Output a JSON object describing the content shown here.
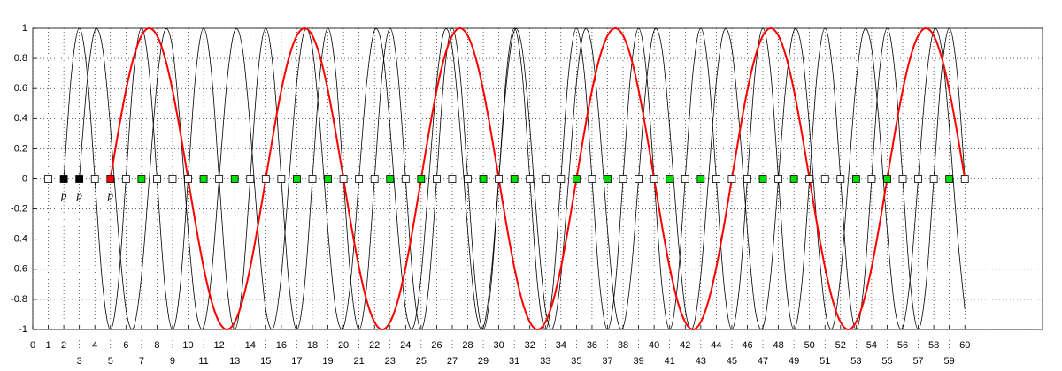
{
  "chart_data": {
    "type": "line",
    "xlim": [
      0,
      65
    ],
    "ylim": [
      -1,
      1
    ],
    "xticks": [
      0,
      1,
      2,
      3,
      4,
      5,
      6,
      7,
      8,
      9,
      10,
      11,
      12,
      13,
      14,
      15,
      16,
      17,
      18,
      19,
      20,
      21,
      22,
      23,
      24,
      25,
      26,
      27,
      28,
      29,
      30,
      31,
      32,
      33,
      34,
      35,
      36,
      37,
      38,
      39,
      40,
      41,
      42,
      43,
      44,
      45,
      46,
      47,
      48,
      49,
      50,
      51,
      52,
      53,
      54,
      55,
      56,
      57,
      58,
      59,
      60
    ],
    "yticks": [
      -1,
      -0.8,
      -0.6,
      -0.4,
      -0.2,
      0,
      0.2,
      0.4,
      0.6,
      0.8,
      1
    ],
    "grid": true,
    "x": [
      0,
      0.5,
      1,
      1.5,
      2,
      2.5,
      3,
      3.5,
      4,
      4.5,
      5,
      5.5,
      6,
      6.5,
      7,
      7.5,
      8,
      8.5,
      9,
      9.5,
      10,
      10.5,
      11,
      11.5,
      12,
      12.5,
      13,
      13.5,
      14,
      14.5,
      15,
      15.5,
      16,
      16.5,
      17,
      17.5,
      18,
      18.5,
      19,
      19.5,
      20,
      20.5,
      21,
      21.5,
      22,
      22.5,
      23,
      23.5,
      24,
      24.5,
      25,
      25.5,
      26,
      26.5,
      27,
      27.5,
      28,
      28.5,
      29,
      29.5,
      30,
      30.5,
      31,
      31.5,
      32,
      32.5,
      33,
      33.5,
      34,
      34.5,
      35,
      35.5,
      36,
      36.5,
      37,
      37.5,
      38,
      38.5,
      39,
      39.5,
      40,
      40.5,
      41,
      41.5,
      42,
      42.5,
      43,
      43.5,
      44,
      44.5,
      45,
      45.5,
      46,
      46.5,
      47,
      47.5,
      48,
      48.5,
      49,
      49.5,
      50,
      50.5,
      51,
      51.5,
      52,
      52.5,
      53,
      53.5,
      54,
      54.5,
      55,
      55.5,
      56,
      56.5,
      57,
      57.5,
      58,
      58.5,
      59,
      59.5,
      60
    ],
    "series": [
      {
        "color": "#000000",
        "values": [
          null,
          null,
          null,
          null,
          0,
          0.707,
          1,
          0.707,
          0,
          -0.707,
          -1,
          -0.707,
          0,
          0.707,
          1,
          0.707,
          0,
          -0.707,
          -1,
          -0.707,
          0,
          0.707,
          1,
          0.707,
          0,
          -0.707,
          -1,
          -0.707,
          0,
          0.707,
          1,
          0.707,
          0,
          -0.707,
          -1,
          -0.707,
          0,
          0.707,
          1,
          0.707,
          0,
          -0.707,
          -1,
          -0.707,
          0,
          0.707,
          1,
          0.707,
          0,
          -0.707,
          -1,
          -0.707,
          0,
          0.707,
          1,
          0.707,
          0,
          -0.707,
          -1,
          -0.707,
          0,
          0.707,
          1,
          0.707,
          0,
          -0.707,
          -1,
          -0.707,
          0,
          0.707,
          1,
          0.707,
          0,
          -0.707,
          -1,
          -0.707,
          0,
          0.707,
          1,
          0.707,
          0,
          -0.707,
          -1,
          -0.707,
          0,
          0.707,
          1,
          0.707,
          0,
          -0.707,
          -1,
          -0.707,
          0,
          0.707,
          1,
          0.707,
          0,
          -0.707,
          -1,
          -0.707,
          0,
          0.707,
          1,
          0.707,
          0,
          -0.707,
          -1,
          -0.707,
          0,
          0.707,
          1,
          0.707,
          0,
          -0.707,
          -1,
          -0.707,
          0,
          0.707,
          1,
          0.707,
          0
        ]
      },
      {
        "color": "#000000",
        "values": [
          null,
          null,
          null,
          null,
          null,
          null,
          0,
          0.643,
          0.985,
          0.866,
          0.342,
          -0.342,
          -0.866,
          -0.985,
          -0.643,
          0,
          0.643,
          0.985,
          0.866,
          0.342,
          -0.342,
          -0.866,
          -0.985,
          -0.643,
          0,
          0.643,
          0.985,
          0.866,
          0.342,
          -0.342,
          -0.866,
          -0.985,
          -0.643,
          0,
          0.643,
          0.985,
          0.866,
          0.342,
          -0.342,
          -0.866,
          -0.985,
          -0.643,
          0,
          0.643,
          0.985,
          0.866,
          0.342,
          -0.342,
          -0.866,
          -0.985,
          -0.643,
          0,
          0.643,
          0.985,
          0.866,
          0.342,
          -0.342,
          -0.866,
          -0.985,
          -0.643,
          0,
          0.643,
          0.985,
          0.866,
          0.342,
          -0.342,
          -0.866,
          -0.985,
          -0.643,
          0,
          0.643,
          0.985,
          0.866,
          0.342,
          -0.342,
          -0.866,
          -0.985,
          -0.643,
          0,
          0.643,
          0.985,
          0.866,
          0.342,
          -0.342,
          -0.866,
          -0.985,
          -0.643,
          0,
          0.643,
          0.985,
          0.866,
          0.342,
          -0.342,
          -0.866,
          -0.985,
          -0.643,
          0,
          0.643,
          0.985,
          0.866,
          0.342,
          -0.342,
          -0.866,
          -0.985,
          -0.643,
          0,
          0.643,
          0.985,
          0.866,
          0.342,
          -0.342,
          -0.866,
          -0.985,
          -0.643,
          0,
          0.643,
          0.985,
          0.866,
          0.342,
          -0.342,
          -0.866
        ]
      },
      {
        "color": "#ff0000",
        "values": [
          null,
          null,
          null,
          null,
          null,
          null,
          null,
          null,
          null,
          null,
          0,
          0.309,
          0.588,
          0.809,
          0.951,
          1,
          0.951,
          0.809,
          0.588,
          0.309,
          0,
          -0.309,
          -0.588,
          -0.809,
          -0.951,
          -1,
          -0.951,
          -0.809,
          -0.588,
          -0.309,
          0,
          0.309,
          0.588,
          0.809,
          0.951,
          1,
          0.951,
          0.809,
          0.588,
          0.309,
          0,
          -0.309,
          -0.588,
          -0.809,
          -0.951,
          -1,
          -0.951,
          -0.809,
          -0.588,
          -0.309,
          0,
          0.309,
          0.588,
          0.809,
          0.951,
          1,
          0.951,
          0.809,
          0.588,
          0.309,
          0,
          -0.309,
          -0.588,
          -0.809,
          -0.951,
          -1,
          -0.951,
          -0.809,
          -0.588,
          -0.309,
          0,
          0.309,
          0.588,
          0.809,
          0.951,
          1,
          0.951,
          0.809,
          0.588,
          0.309,
          0,
          -0.309,
          -0.588,
          -0.809,
          -0.951,
          -1,
          -0.951,
          -0.809,
          -0.588,
          -0.309,
          0,
          0.309,
          0.588,
          0.809,
          0.951,
          1,
          0.951,
          0.809,
          0.588,
          0.309,
          0,
          -0.309,
          -0.588,
          -0.809,
          -0.951,
          -1,
          -0.951,
          -0.809,
          -0.588,
          -0.309,
          0,
          0.309,
          0.588,
          0.809,
          0.951,
          1,
          0.951,
          0.809,
          0.588,
          0.309,
          0
        ]
      }
    ],
    "markers": [
      {
        "color": "#ffffff",
        "x": [
          1,
          4,
          6,
          8,
          9,
          10,
          12,
          14,
          15,
          16,
          18,
          20,
          21,
          22,
          24,
          26,
          27,
          28,
          30,
          32,
          33,
          34,
          36,
          38,
          39,
          40,
          42,
          44,
          45,
          46,
          48,
          50,
          51,
          52,
          54,
          56,
          57,
          58,
          60
        ],
        "values": [
          0,
          0,
          0,
          0,
          0,
          0,
          0,
          0,
          0,
          0,
          0,
          0,
          0,
          0,
          0,
          0,
          0,
          0,
          0,
          0,
          0,
          0,
          0,
          0,
          0,
          0,
          0,
          0,
          0,
          0,
          0,
          0,
          0,
          0,
          0,
          0,
          0,
          0,
          0
        ]
      },
      {
        "color": "#00dd00",
        "x": [
          7,
          11,
          13,
          17,
          19,
          23,
          25,
          29,
          31,
          35,
          37,
          41,
          43,
          47,
          49,
          53,
          55,
          59
        ],
        "values": [
          0,
          0,
          0,
          0,
          0,
          0,
          0,
          0,
          0,
          0,
          0,
          0,
          0,
          0,
          0,
          0,
          0,
          0
        ]
      },
      {
        "color": "#000000",
        "x": [
          2,
          3
        ],
        "values": [
          0,
          0
        ]
      },
      {
        "color": "#ff0000",
        "x": [
          5
        ],
        "values": [
          0
        ]
      }
    ],
    "annotations": [
      {
        "text": "p",
        "x": 2
      },
      {
        "text": "p",
        "x": 3
      },
      {
        "text": "p",
        "x": 5
      }
    ]
  }
}
